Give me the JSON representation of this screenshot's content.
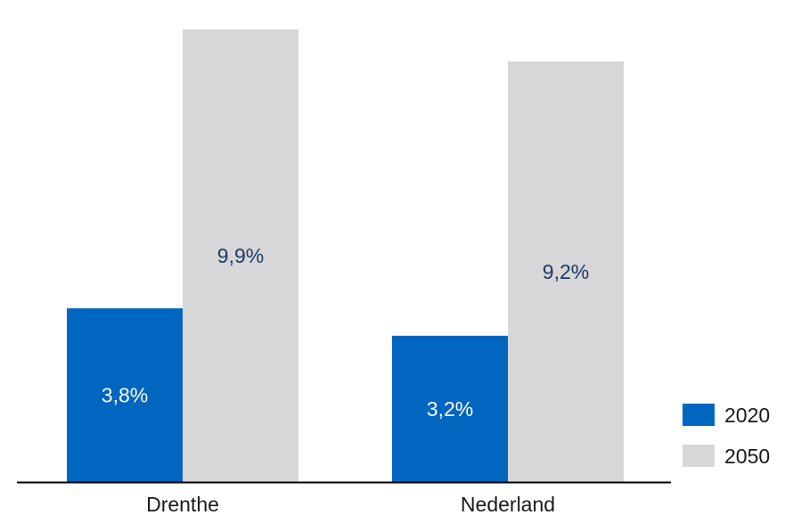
{
  "colors": {
    "series_2020": "#0066c0",
    "series_2050": "#d7d7d9",
    "label_on_2020": "#ffffff",
    "label_on_2050": "#1f3864",
    "axis": "#000000"
  },
  "chart_data": {
    "type": "bar",
    "categories": [
      "Drenthe",
      "Nederland"
    ],
    "series": [
      {
        "name": "2020",
        "values": [
          3.8,
          3.2
        ],
        "labels": [
          "3,8%",
          "3,2%"
        ]
      },
      {
        "name": "2050",
        "values": [
          9.9,
          9.2
        ],
        "labels": [
          "9,9%",
          "9,2%"
        ]
      }
    ],
    "title": "",
    "xlabel": "",
    "ylabel": "",
    "ylim": [
      0,
      10.35
    ],
    "grid": false,
    "legend_position": "bottom-right"
  }
}
